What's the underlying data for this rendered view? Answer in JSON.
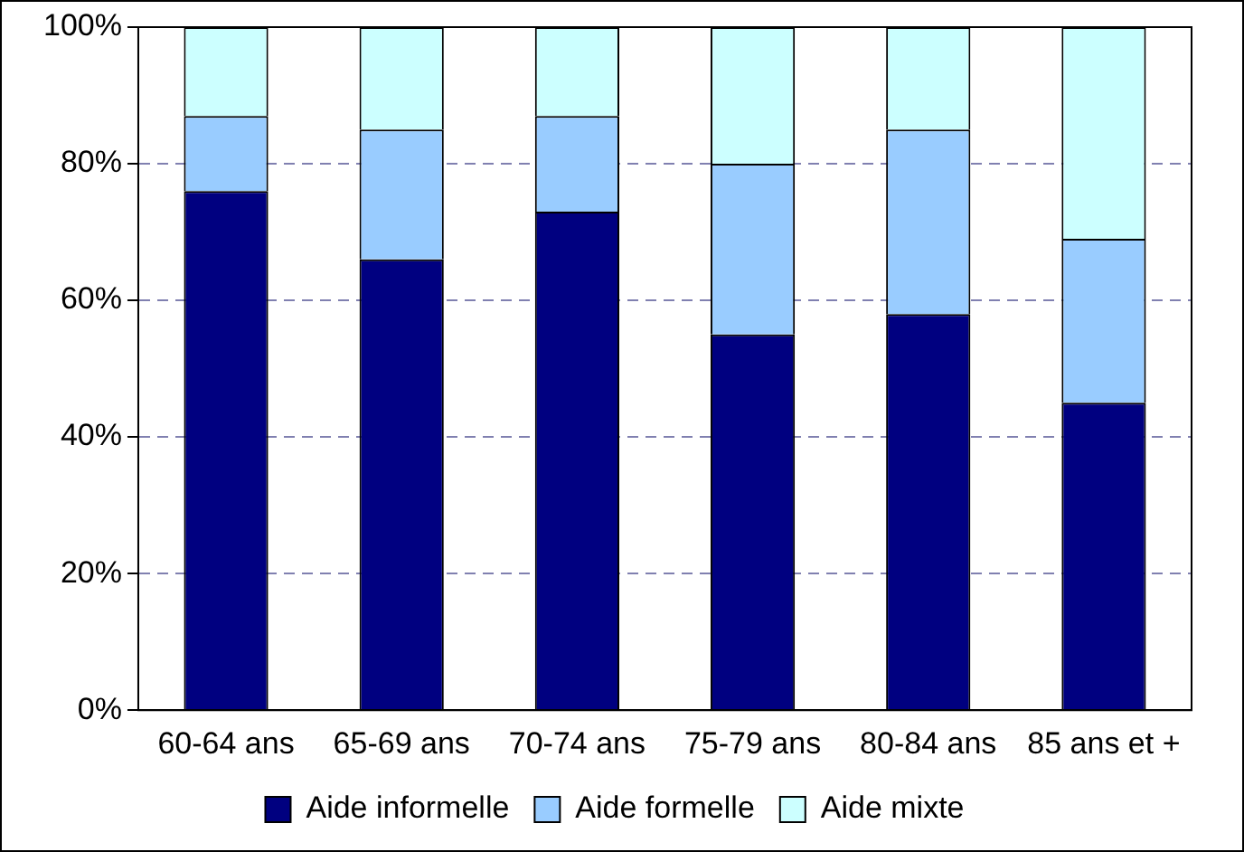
{
  "chart_data": {
    "type": "bar",
    "stacked": true,
    "categories": [
      "60-64 ans",
      "65-69 ans",
      "70-74 ans",
      "75-79 ans",
      "80-84 ans",
      "85 ans et +"
    ],
    "series": [
      {
        "name": "Aide informelle",
        "color": "#000080",
        "values": [
          76,
          66,
          73,
          55,
          58,
          45
        ]
      },
      {
        "name": "Aide formelle",
        "color": "#99ccff",
        "values": [
          11,
          19,
          14,
          25,
          27,
          24
        ]
      },
      {
        "name": "Aide mixte",
        "color": "#ccffff",
        "values": [
          13,
          15,
          13,
          20,
          15,
          31
        ]
      }
    ],
    "ylim": [
      0,
      100
    ],
    "yticks": [
      {
        "value": 0,
        "label": "0%"
      },
      {
        "value": 20,
        "label": "20%"
      },
      {
        "value": 40,
        "label": "40%"
      },
      {
        "value": 60,
        "label": "60%"
      },
      {
        "value": 80,
        "label": "80%"
      },
      {
        "value": 100,
        "label": "100%"
      }
    ],
    "grid": "y",
    "legend": "bottom"
  }
}
